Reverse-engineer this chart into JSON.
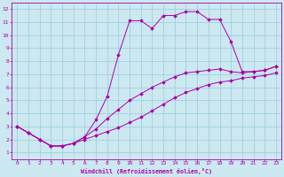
{
  "xlabel": "Windchill (Refroidissement éolien,°C)",
  "bg_color": "#cce8f0",
  "line_color": "#aa00aa",
  "grid_color": "#99ccdd",
  "xlim": [
    -0.5,
    23.5
  ],
  "ylim": [
    0.5,
    12.5
  ],
  "xticks": [
    0,
    1,
    2,
    3,
    4,
    5,
    6,
    7,
    8,
    9,
    10,
    11,
    12,
    13,
    14,
    15,
    16,
    17,
    18,
    19,
    20,
    21,
    22,
    23
  ],
  "yticks": [
    1,
    2,
    3,
    4,
    5,
    6,
    7,
    8,
    9,
    10,
    11,
    12
  ],
  "line1_x": [
    0,
    1,
    2,
    3,
    4,
    5,
    6,
    7,
    8,
    9,
    10,
    11,
    12,
    13,
    14,
    15,
    16,
    17,
    18,
    19,
    20,
    21,
    22,
    23
  ],
  "line1_y": [
    3.0,
    2.5,
    2.0,
    1.5,
    1.5,
    1.7,
    2.2,
    3.5,
    5.3,
    8.5,
    11.1,
    11.1,
    10.5,
    11.5,
    11.5,
    11.8,
    11.8,
    11.2,
    11.2,
    9.5,
    7.2,
    7.2,
    7.3,
    7.6
  ],
  "line2_x": [
    0,
    1,
    2,
    3,
    4,
    5,
    6,
    7,
    8,
    9,
    10,
    11,
    12,
    13,
    14,
    15,
    16,
    17,
    18,
    19,
    20,
    21,
    22,
    23
  ],
  "line2_y": [
    3.0,
    2.5,
    2.0,
    1.5,
    1.5,
    1.7,
    2.2,
    2.8,
    3.6,
    4.3,
    5.0,
    5.5,
    6.0,
    6.4,
    6.8,
    7.1,
    7.2,
    7.3,
    7.4,
    7.2,
    7.1,
    7.2,
    7.3,
    7.6
  ],
  "line3_x": [
    0,
    1,
    2,
    3,
    4,
    5,
    6,
    7,
    8,
    9,
    10,
    11,
    12,
    13,
    14,
    15,
    16,
    17,
    18,
    19,
    20,
    21,
    22,
    23
  ],
  "line3_y": [
    3.0,
    2.5,
    2.0,
    1.5,
    1.5,
    1.7,
    2.0,
    2.3,
    2.6,
    2.9,
    3.3,
    3.7,
    4.2,
    4.7,
    5.2,
    5.6,
    5.9,
    6.2,
    6.4,
    6.5,
    6.7,
    6.8,
    6.9,
    7.1
  ]
}
